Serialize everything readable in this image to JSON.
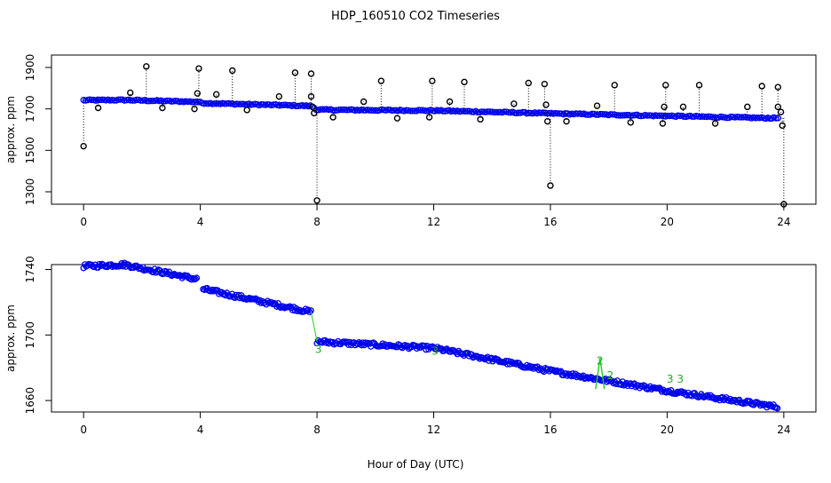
{
  "title": "HDP_160510  CO2 Timeseries",
  "xlabel": "Hour of Day (UTC)",
  "chart_data": [
    {
      "type": "scatter",
      "ylabel": "approx. ppm",
      "xlim": [
        -1.1,
        25.1
      ],
      "ylim": [
        1240,
        1960
      ],
      "x_ticks": [
        0,
        4,
        8,
        12,
        16,
        20,
        24
      ],
      "y_ticks": [
        1300,
        1500,
        1700,
        1900
      ],
      "x_tick_labels": [
        "0",
        "4",
        "8",
        "12",
        "16",
        "20",
        "24"
      ],
      "y_tick_labels": [
        "1300",
        "1500",
        "1700",
        "1900"
      ],
      "baseline": [
        [
          0,
          1742
        ],
        [
          1.4,
          1743
        ],
        [
          3.9,
          1734
        ],
        [
          4.1,
          1728
        ],
        [
          7.8,
          1714
        ],
        [
          8,
          1696
        ],
        [
          12,
          1692
        ],
        [
          16,
          1678
        ],
        [
          20,
          1666
        ],
        [
          23.3,
          1656
        ]
      ],
      "outliers": [
        {
          "x": 0,
          "y": 1520
        },
        {
          "x": 0.5,
          "y": 1705
        },
        {
          "x": 1.6,
          "y": 1778
        },
        {
          "x": 2.15,
          "y": 1905
        },
        {
          "x": 2.7,
          "y": 1705
        },
        {
          "x": 3.8,
          "y": 1700
        },
        {
          "x": 3.9,
          "y": 1775
        },
        {
          "x": 3.95,
          "y": 1895
        },
        {
          "x": 4.55,
          "y": 1770
        },
        {
          "x": 5.1,
          "y": 1885
        },
        {
          "x": 5.6,
          "y": 1695
        },
        {
          "x": 6.7,
          "y": 1760
        },
        {
          "x": 7.25,
          "y": 1875
        },
        {
          "x": 7.8,
          "y": 1870
        },
        {
          "x": 7.8,
          "y": 1760
        },
        {
          "x": 7.85,
          "y": 1710
        },
        {
          "x": 7.9,
          "y": 1680
        },
        {
          "x": 8,
          "y": 1258
        },
        {
          "x": 8.55,
          "y": 1660
        },
        {
          "x": 9.6,
          "y": 1735
        },
        {
          "x": 10.2,
          "y": 1835
        },
        {
          "x": 10.75,
          "y": 1655
        },
        {
          "x": 11.85,
          "y": 1660
        },
        {
          "x": 11.95,
          "y": 1835
        },
        {
          "x": 12.55,
          "y": 1735
        },
        {
          "x": 13.05,
          "y": 1830
        },
        {
          "x": 13.6,
          "y": 1650
        },
        {
          "x": 14.75,
          "y": 1725
        },
        {
          "x": 15.25,
          "y": 1825
        },
        {
          "x": 15.8,
          "y": 1820
        },
        {
          "x": 15.85,
          "y": 1720
        },
        {
          "x": 15.9,
          "y": 1640
        },
        {
          "x": 16,
          "y": 1330
        },
        {
          "x": 16.55,
          "y": 1640
        },
        {
          "x": 17.6,
          "y": 1715
        },
        {
          "x": 18.2,
          "y": 1815
        },
        {
          "x": 18.75,
          "y": 1635
        },
        {
          "x": 19.85,
          "y": 1630
        },
        {
          "x": 19.9,
          "y": 1710
        },
        {
          "x": 19.95,
          "y": 1815
        },
        {
          "x": 20.55,
          "y": 1710
        },
        {
          "x": 21.1,
          "y": 1815
        },
        {
          "x": 21.65,
          "y": 1630
        },
        {
          "x": 22.75,
          "y": 1710
        },
        {
          "x": 23.25,
          "y": 1810
        },
        {
          "x": 23.8,
          "y": 1805
        },
        {
          "x": 23.8,
          "y": 1710
        },
        {
          "x": 23.9,
          "y": 1685
        },
        {
          "x": 23.95,
          "y": 1620
        },
        {
          "x": 24,
          "y": 1240
        }
      ]
    },
    {
      "type": "scatter",
      "ylabel": "approx. ppm",
      "xlim": [
        -1.1,
        25.1
      ],
      "ylim": [
        1653,
        1743
      ],
      "x_ticks": [
        0,
        4,
        8,
        12,
        16,
        20,
        24
      ],
      "y_ticks": [
        1660,
        1700,
        1740
      ],
      "x_tick_labels": [
        "0",
        "4",
        "8",
        "12",
        "16",
        "20",
        "24"
      ],
      "y_tick_labels": [
        "1660",
        "1700",
        "1740"
      ],
      "segments": [
        {
          "x": [
            0,
            1.4
          ],
          "y": [
            1742,
            1743
          ]
        },
        {
          "x": [
            1.4,
            3.9
          ],
          "y": [
            1743,
            1734
          ]
        },
        {
          "x": [
            4.1,
            7.8
          ],
          "y": [
            1728,
            1714
          ]
        },
        {
          "x": [
            8.0,
            12.0
          ],
          "y": [
            1696,
            1692
          ]
        },
        {
          "x": [
            12.0,
            16.0
          ],
          "y": [
            1692,
            1678
          ]
        },
        {
          "x": [
            16.0,
            20.0
          ],
          "y": [
            1678,
            1666
          ]
        },
        {
          "x": [
            20.0,
            23.8
          ],
          "y": [
            1666,
            1656
          ]
        }
      ],
      "annotations": [
        {
          "label": "2",
          "x": 17.7,
          "y": 1682
        },
        {
          "label": "2",
          "x": 18.05,
          "y": 1673
        },
        {
          "label": "3",
          "x": 20.1,
          "y": 1671
        },
        {
          "label": "3",
          "x": 20.45,
          "y": 1671
        },
        {
          "label": "3",
          "x": 8.05,
          "y": 1689
        },
        {
          "label": "3",
          "x": 12.05,
          "y": 1688
        }
      ]
    }
  ]
}
